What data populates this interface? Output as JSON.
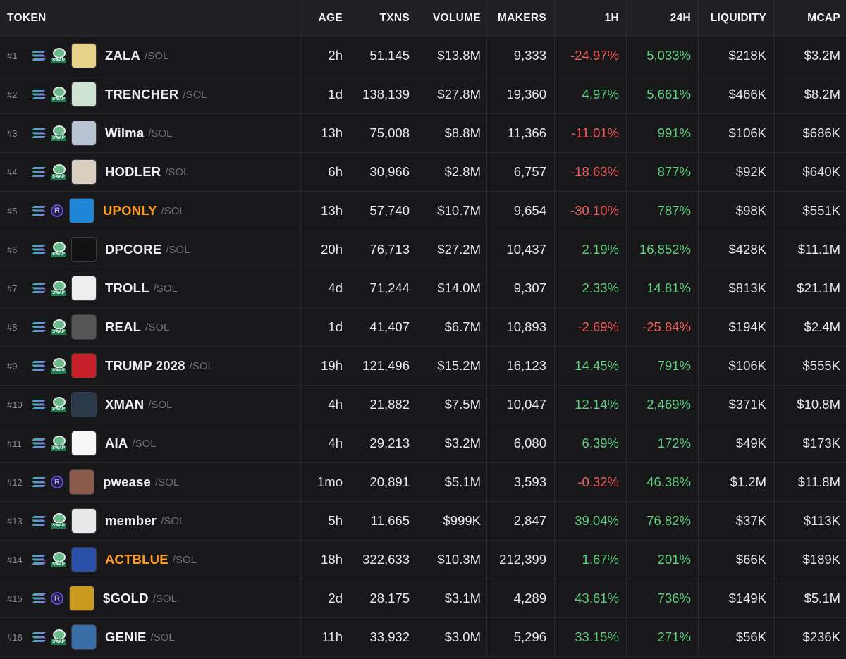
{
  "columns": {
    "token": "TOKEN",
    "age": "AGE",
    "txns": "TXNS",
    "volume": "VOLUME",
    "makers": "MAKERS",
    "change_1h": "1H",
    "change_24h": "24H",
    "liquidity": "LIQUIDITY",
    "mcap": "MCAP"
  },
  "colors": {
    "positive": "#5fcf7e",
    "negative": "#f25c5c",
    "highlight_symbol": "#ff9a1f"
  },
  "rows": [
    {
      "rank": "#1",
      "dex": "swap",
      "symbol": "ZALA",
      "pair": "/SOL",
      "age": "2h",
      "txns": "51,145",
      "volume": "$13.8M",
      "makers": "9,333",
      "h1": "-24.97%",
      "h24": "5,033%",
      "liquidity": "$218K",
      "mcap": "$3.2M",
      "avatar": "#e7d48a"
    },
    {
      "rank": "#2",
      "dex": "swap",
      "symbol": "TRENCHER",
      "pair": "/SOL",
      "age": "1d",
      "txns": "138,139",
      "volume": "$27.8M",
      "makers": "19,360",
      "h1": "4.97%",
      "h24": "5,661%",
      "liquidity": "$466K",
      "mcap": "$8.2M",
      "avatar": "#cfe3d2"
    },
    {
      "rank": "#3",
      "dex": "swap",
      "symbol": "Wilma",
      "pair": "/SOL",
      "age": "13h",
      "txns": "75,008",
      "volume": "$8.8M",
      "makers": "11,366",
      "h1": "-11.01%",
      "h24": "991%",
      "liquidity": "$106K",
      "mcap": "$686K",
      "avatar": "#b8c4d4"
    },
    {
      "rank": "#4",
      "dex": "swap",
      "symbol": "HODLER",
      "pair": "/SOL",
      "age": "6h",
      "txns": "30,966",
      "volume": "$2.8M",
      "makers": "6,757",
      "h1": "-18.63%",
      "h24": "877%",
      "liquidity": "$92K",
      "mcap": "$640K",
      "avatar": "#d9cfc0"
    },
    {
      "rank": "#5",
      "dex": "raydium",
      "symbol": "UPONLY",
      "pair": "/SOL",
      "age": "13h",
      "txns": "57,740",
      "volume": "$10.7M",
      "makers": "9,654",
      "h1": "-30.10%",
      "h24": "787%",
      "liquidity": "$98K",
      "mcap": "$551K",
      "avatar": "#1f86d6",
      "orange": true
    },
    {
      "rank": "#6",
      "dex": "swap",
      "symbol": "DPCORE",
      "pair": "/SOL",
      "age": "20h",
      "txns": "76,713",
      "volume": "$27.2M",
      "makers": "10,437",
      "h1": "2.19%",
      "h24": "16,852%",
      "liquidity": "$428K",
      "mcap": "$11.1M",
      "avatar": "#111111"
    },
    {
      "rank": "#7",
      "dex": "swap",
      "symbol": "TROLL",
      "pair": "/SOL",
      "age": "4d",
      "txns": "71,244",
      "volume": "$14.0M",
      "makers": "9,307",
      "h1": "2.33%",
      "h24": "14.81%",
      "liquidity": "$813K",
      "mcap": "$21.1M",
      "avatar": "#eeeeee"
    },
    {
      "rank": "#8",
      "dex": "swap",
      "symbol": "REAL",
      "pair": "/SOL",
      "age": "1d",
      "txns": "41,407",
      "volume": "$6.7M",
      "makers": "10,893",
      "h1": "-2.69%",
      "h24": "-25.84%",
      "liquidity": "$194K",
      "mcap": "$2.4M",
      "avatar": "#555555"
    },
    {
      "rank": "#9",
      "dex": "swap",
      "symbol": "TRUMP 2028",
      "pair": "/SOL",
      "age": "19h",
      "txns": "121,496",
      "volume": "$15.2M",
      "makers": "16,123",
      "h1": "14.45%",
      "h24": "791%",
      "liquidity": "$106K",
      "mcap": "$555K",
      "avatar": "#c8202b"
    },
    {
      "rank": "#10",
      "dex": "swap",
      "symbol": "XMAN",
      "pair": "/SOL",
      "age": "4h",
      "txns": "21,882",
      "volume": "$7.5M",
      "makers": "10,047",
      "h1": "12.14%",
      "h24": "2,469%",
      "liquidity": "$371K",
      "mcap": "$10.8M",
      "avatar": "#2b3a4a"
    },
    {
      "rank": "#11",
      "dex": "swap",
      "symbol": "AIA",
      "pair": "/SOL",
      "age": "4h",
      "txns": "29,213",
      "volume": "$3.2M",
      "makers": "6,080",
      "h1": "6.39%",
      "h24": "172%",
      "liquidity": "$49K",
      "mcap": "$173K",
      "avatar": "#f7f7f7"
    },
    {
      "rank": "#12",
      "dex": "raydium",
      "symbol": "pwease",
      "pair": "/SOL",
      "age": "1mo",
      "txns": "20,891",
      "volume": "$5.1M",
      "makers": "3,593",
      "h1": "-0.32%",
      "h24": "46.38%",
      "liquidity": "$1.2M",
      "mcap": "$11.8M",
      "avatar": "#8a5a4a"
    },
    {
      "rank": "#13",
      "dex": "swap",
      "symbol": "member",
      "pair": "/SOL",
      "age": "5h",
      "txns": "11,665",
      "volume": "$999K",
      "makers": "2,847",
      "h1": "39.04%",
      "h24": "76.82%",
      "liquidity": "$37K",
      "mcap": "$113K",
      "avatar": "#e9e9e9"
    },
    {
      "rank": "#14",
      "dex": "swap",
      "symbol": "ACTBLUE",
      "pair": "/SOL",
      "age": "18h",
      "txns": "322,633",
      "volume": "$10.3M",
      "makers": "212,399",
      "h1": "1.67%",
      "h24": "201%",
      "liquidity": "$66K",
      "mcap": "$189K",
      "avatar": "#2a4fa8",
      "orange": true
    },
    {
      "rank": "#15",
      "dex": "raydium",
      "symbol": "$GOLD",
      "pair": "/SOL",
      "age": "2d",
      "txns": "28,175",
      "volume": "$3.1M",
      "makers": "4,289",
      "h1": "43.61%",
      "h24": "736%",
      "liquidity": "$149K",
      "mcap": "$5.1M",
      "avatar": "#c99a1e"
    },
    {
      "rank": "#16",
      "dex": "swap",
      "symbol": "GENIE",
      "pair": "/SOL",
      "age": "11h",
      "txns": "33,932",
      "volume": "$3.0M",
      "makers": "5,296",
      "h1": "33.15%",
      "h24": "271%",
      "liquidity": "$56K",
      "mcap": "$236K",
      "avatar": "#3a6ea8"
    }
  ]
}
